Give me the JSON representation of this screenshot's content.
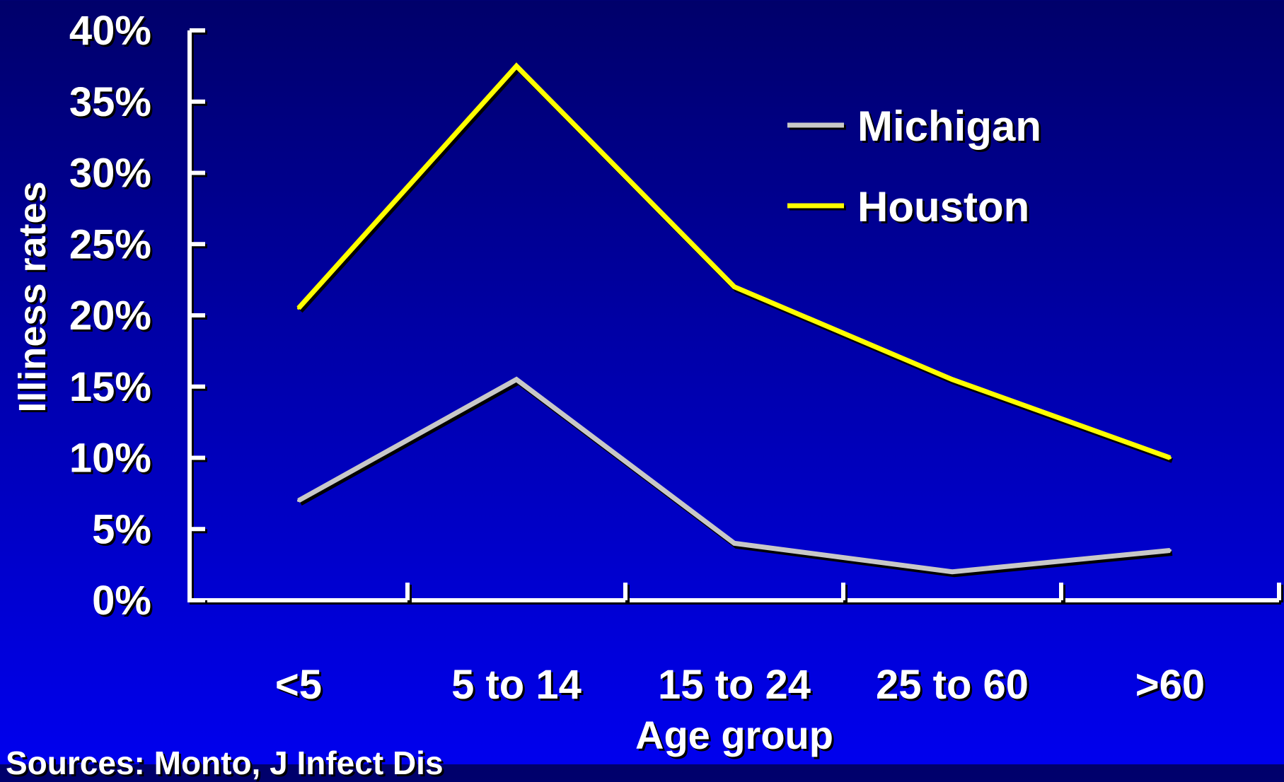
{
  "chart_data": {
    "type": "line",
    "categories": [
      "<5",
      "5 to 14",
      "15 to 24",
      "25 to 60",
      ">60"
    ],
    "series": [
      {
        "name": "Michigan",
        "values": [
          7,
          15.5,
          4,
          2,
          3.5
        ],
        "color": "#c8c8c8"
      },
      {
        "name": "Houston",
        "values": [
          20.5,
          37.5,
          22,
          15.5,
          10
        ],
        "color": "#ffff00"
      }
    ],
    "ylabel": "Illiness rates",
    "xlabel": "Age group",
    "ylim": [
      0,
      40
    ],
    "yticks": [
      0,
      5,
      10,
      15,
      20,
      25,
      30,
      35,
      40
    ],
    "ytick_labels": [
      "0%",
      "5%",
      "10%",
      "15%",
      "20%",
      "25%",
      "30%",
      "35%",
      "40%"
    ],
    "grid": false,
    "legend_position": "top-right",
    "axis_color": "#ffffff",
    "background_colors": [
      "#00006a",
      "#0000ee"
    ]
  },
  "footnote": "Sources: Monto, J Infect Dis"
}
